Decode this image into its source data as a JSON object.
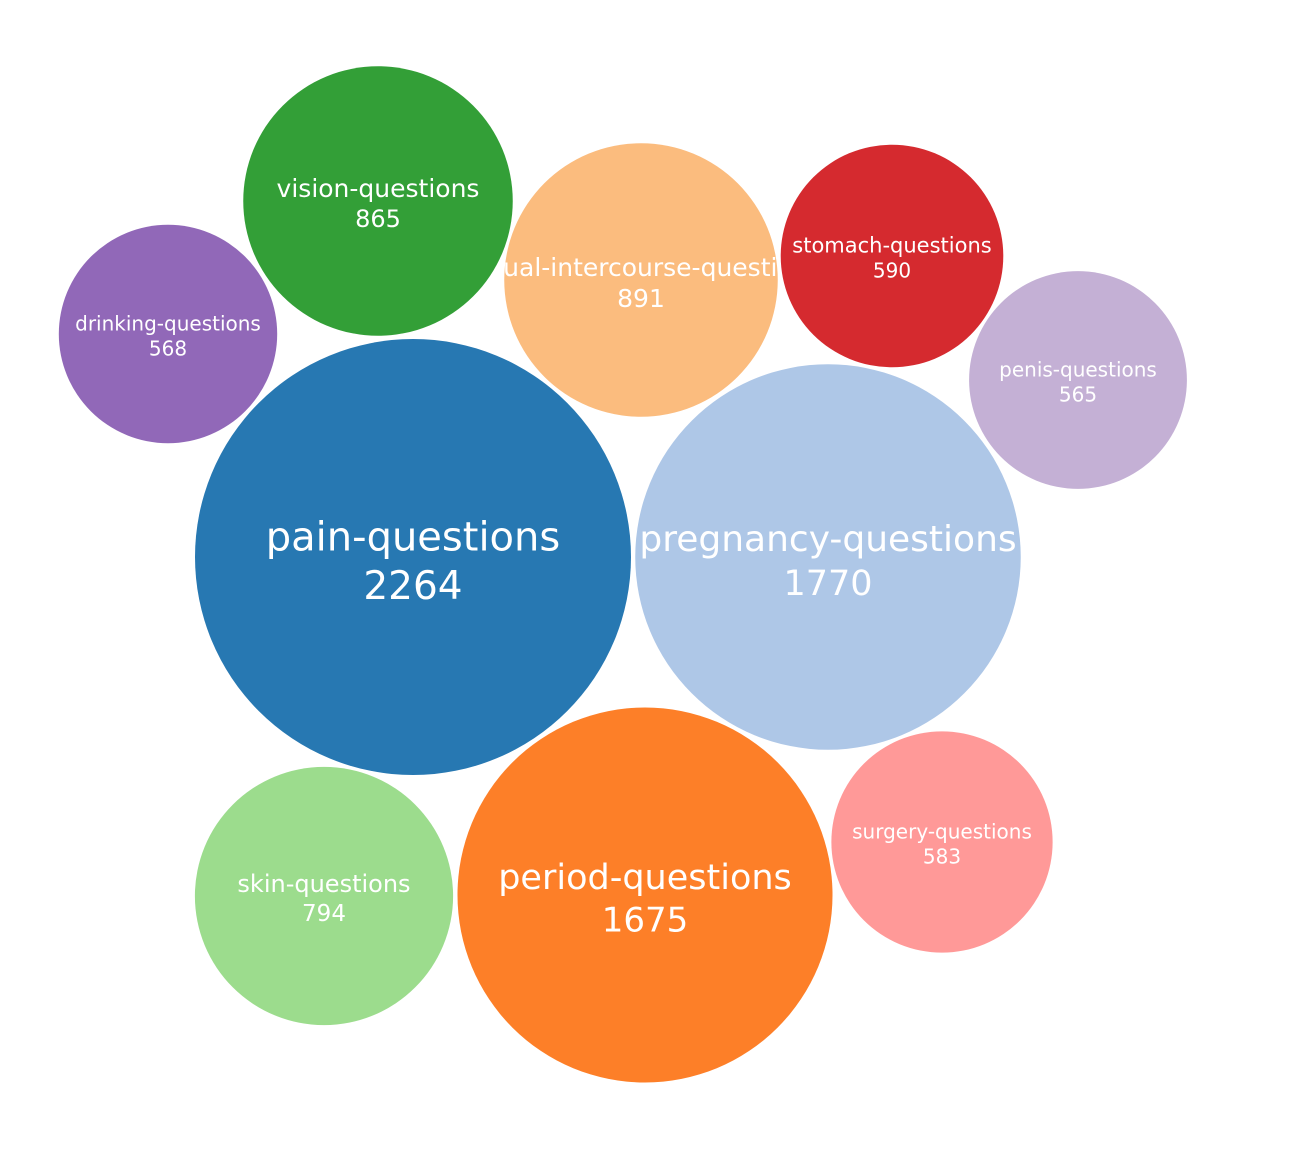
{
  "chart_data": {
    "type": "bubble",
    "title": "",
    "bubbles": [
      {
        "name": "pain-questions",
        "value": 2264,
        "color": "#2778b2"
      },
      {
        "name": "pregnancy-questions",
        "value": 1770,
        "color": "#aec7e7"
      },
      {
        "name": "period-questions",
        "value": 1675,
        "color": "#fd7f28"
      },
      {
        "name": "sexual-intercourse-questions",
        "value": 891,
        "color": "#fbbc7e"
      },
      {
        "name": "vision-questions",
        "value": 865,
        "color": "#339f37"
      },
      {
        "name": "skin-questions",
        "value": 794,
        "color": "#9cdc8d"
      },
      {
        "name": "stomach-questions",
        "value": 590,
        "color": "#d52a2f"
      },
      {
        "name": "surgery-questions",
        "value": 583,
        "color": "#ff9998"
      },
      {
        "name": "drinking-questions",
        "value": 568,
        "color": "#9168b8"
      },
      {
        "name": "penis-questions",
        "value": 565,
        "color": "#c4b0d5"
      }
    ]
  }
}
